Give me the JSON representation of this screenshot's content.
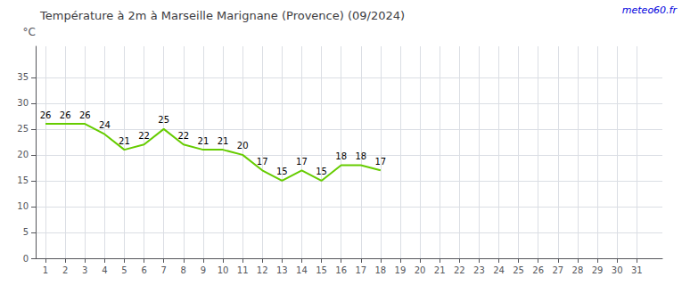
{
  "chart_data": {
    "type": "line",
    "title": "Température à 2m à Marseille Marignane (Provence) (09/2024)",
    "ylabel": "°C",
    "annotations": [
      {
        "text": "meteo60.fr",
        "color": "#0000dd"
      }
    ],
    "x": [
      1,
      2,
      3,
      4,
      5,
      6,
      7,
      8,
      9,
      10,
      11,
      12,
      13,
      14,
      15,
      16,
      17,
      18
    ],
    "values": [
      26,
      26,
      26,
      24,
      21,
      22,
      25,
      22,
      21,
      21,
      20,
      17,
      15,
      17,
      15,
      18,
      18,
      17
    ],
    "color": "#66cc00",
    "xlim": [
      0.5,
      32.3
    ],
    "xticks": [
      1,
      2,
      3,
      4,
      5,
      6,
      7,
      8,
      9,
      10,
      11,
      12,
      13,
      14,
      15,
      16,
      17,
      18,
      19,
      20,
      21,
      22,
      23,
      24,
      25,
      26,
      27,
      28,
      29,
      30,
      31
    ],
    "ylim": [
      0,
      41
    ],
    "yticks": [
      0,
      5,
      10,
      15,
      20,
      25,
      30,
      35
    ],
    "grid": true,
    "data_labels": true
  }
}
